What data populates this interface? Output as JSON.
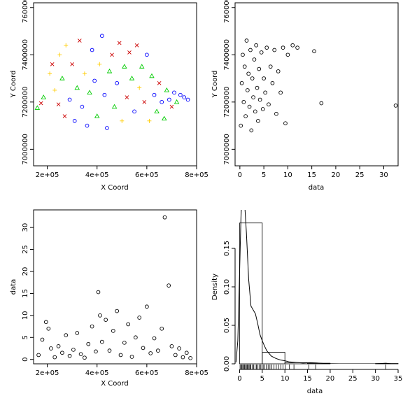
{
  "chart_data": [
    {
      "id": "p1",
      "type": "scatter",
      "xlabel": "X Coord",
      "ylabel": "Y Coord",
      "xlim": [
        145000,
        800000
      ],
      "ylim": [
        6930000,
        7620000
      ],
      "xticks": [
        {
          "v": 200000,
          "label": "2e+05"
        },
        {
          "v": 400000,
          "label": "4e+05"
        },
        {
          "v": 600000,
          "label": "6e+05"
        },
        {
          "v": 800000,
          "label": "8e+05"
        }
      ],
      "yticks": [
        {
          "v": 7000000,
          "label": "7000000"
        },
        {
          "v": 7200000,
          "label": "7200000"
        },
        {
          "v": 7400000,
          "label": "7400000"
        },
        {
          "v": 7600000,
          "label": "7600000"
        }
      ],
      "symbol_colors": {
        "circle": "#0000ff",
        "triangle": "#00cc00",
        "plus": "#ffcc00",
        "cross": "#cc0000"
      },
      "points": [
        [
          160000,
          7175000,
          "triangle"
        ],
        [
          175000,
          7195000,
          "cross"
        ],
        [
          185000,
          7220000,
          "triangle"
        ],
        [
          210000,
          7320000,
          "plus"
        ],
        [
          220000,
          7360000,
          "cross"
        ],
        [
          230000,
          7250000,
          "plus"
        ],
        [
          245000,
          7190000,
          "cross"
        ],
        [
          250000,
          7400000,
          "plus"
        ],
        [
          260000,
          7300000,
          "triangle"
        ],
        [
          270000,
          7140000,
          "cross"
        ],
        [
          275000,
          7440000,
          "plus"
        ],
        [
          290000,
          7210000,
          "circle"
        ],
        [
          300000,
          7360000,
          "cross"
        ],
        [
          310000,
          7120000,
          "circle"
        ],
        [
          320000,
          7260000,
          "triangle"
        ],
        [
          330000,
          7460000,
          "cross"
        ],
        [
          340000,
          7180000,
          "circle"
        ],
        [
          350000,
          7320000,
          "plus"
        ],
        [
          360000,
          7100000,
          "circle"
        ],
        [
          370000,
          7240000,
          "triangle"
        ],
        [
          380000,
          7420000,
          "circle"
        ],
        [
          390000,
          7290000,
          "circle"
        ],
        [
          400000,
          7140000,
          "triangle"
        ],
        [
          410000,
          7360000,
          "plus"
        ],
        [
          420000,
          7480000,
          "circle"
        ],
        [
          430000,
          7230000,
          "circle"
        ],
        [
          440000,
          7090000,
          "circle"
        ],
        [
          450000,
          7330000,
          "triangle"
        ],
        [
          460000,
          7400000,
          "cross"
        ],
        [
          470000,
          7180000,
          "triangle"
        ],
        [
          480000,
          7280000,
          "circle"
        ],
        [
          490000,
          7450000,
          "cross"
        ],
        [
          500000,
          7120000,
          "plus"
        ],
        [
          510000,
          7350000,
          "triangle"
        ],
        [
          520000,
          7220000,
          "cross"
        ],
        [
          530000,
          7410000,
          "cross"
        ],
        [
          540000,
          7300000,
          "triangle"
        ],
        [
          550000,
          7160000,
          "circle"
        ],
        [
          560000,
          7440000,
          "cross"
        ],
        [
          570000,
          7260000,
          "plus"
        ],
        [
          580000,
          7350000,
          "triangle"
        ],
        [
          590000,
          7200000,
          "cross"
        ],
        [
          600000,
          7400000,
          "circle"
        ],
        [
          610000,
          7120000,
          "plus"
        ],
        [
          620000,
          7310000,
          "triangle"
        ],
        [
          630000,
          7230000,
          "circle"
        ],
        [
          640000,
          7160000,
          "triangle"
        ],
        [
          650000,
          7280000,
          "cross"
        ],
        [
          660000,
          7200000,
          "circle"
        ],
        [
          670000,
          7130000,
          "triangle"
        ],
        [
          680000,
          7250000,
          "triangle"
        ],
        [
          690000,
          7210000,
          "circle"
        ],
        [
          700000,
          7180000,
          "cross"
        ],
        [
          710000,
          7240000,
          "circle"
        ],
        [
          720000,
          7200000,
          "triangle"
        ],
        [
          735000,
          7230000,
          "circle"
        ],
        [
          750000,
          7220000,
          "circle"
        ],
        [
          765000,
          7210000,
          "circle"
        ]
      ]
    },
    {
      "id": "p2",
      "type": "scatter",
      "xlabel": "data",
      "ylabel": "Y Coord",
      "xlim": [
        -1,
        33
      ],
      "ylim": [
        6930000,
        7620000
      ],
      "xticks": [
        {
          "v": 0,
          "label": "0"
        },
        {
          "v": 5,
          "label": "5"
        },
        {
          "v": 10,
          "label": "10"
        },
        {
          "v": 15,
          "label": "15"
        },
        {
          "v": 20,
          "label": "20"
        },
        {
          "v": 25,
          "label": "25"
        },
        {
          "v": 30,
          "label": "30"
        }
      ],
      "yticks": [
        {
          "v": 7000000,
          "label": "7000000"
        },
        {
          "v": 7200000,
          "label": "7200000"
        },
        {
          "v": 7400000,
          "label": "7400000"
        },
        {
          "v": 7600000,
          "label": "7600000"
        }
      ],
      "points": [
        [
          0.2,
          7100000
        ],
        [
          0.4,
          7280000
        ],
        [
          0.6,
          7400000
        ],
        [
          0.8,
          7200000
        ],
        [
          1.0,
          7350000
        ],
        [
          1.2,
          7140000
        ],
        [
          1.4,
          7460000
        ],
        [
          1.6,
          7250000
        ],
        [
          1.8,
          7320000
        ],
        [
          2.0,
          7180000
        ],
        [
          2.2,
          7420000
        ],
        [
          2.4,
          7080000
        ],
        [
          2.6,
          7300000
        ],
        [
          2.8,
          7220000
        ],
        [
          3.0,
          7380000
        ],
        [
          3.2,
          7160000
        ],
        [
          3.4,
          7440000
        ],
        [
          3.6,
          7260000
        ],
        [
          3.8,
          7120000
        ],
        [
          4.0,
          7340000
        ],
        [
          4.2,
          7210000
        ],
        [
          4.5,
          7410000
        ],
        [
          4.8,
          7170000
        ],
        [
          5.0,
          7300000
        ],
        [
          5.3,
          7240000
        ],
        [
          5.6,
          7430000
        ],
        [
          6.0,
          7190000
        ],
        [
          6.4,
          7350000
        ],
        [
          6.8,
          7280000
        ],
        [
          7.2,
          7420000
        ],
        [
          7.6,
          7150000
        ],
        [
          8.0,
          7330000
        ],
        [
          8.5,
          7240000
        ],
        [
          9.0,
          7430000
        ],
        [
          9.5,
          7110000
        ],
        [
          10.0,
          7400000
        ],
        [
          11.0,
          7440000
        ],
        [
          12.0,
          7430000
        ],
        [
          15.5,
          7415000
        ],
        [
          17.0,
          7195000
        ],
        [
          32.5,
          7185000
        ]
      ]
    },
    {
      "id": "p3",
      "type": "scatter",
      "xlabel": "X Coord",
      "ylabel": "data",
      "xlim": [
        145000,
        800000
      ],
      "ylim": [
        -1,
        34
      ],
      "xticks": [
        {
          "v": 200000,
          "label": "2e+05"
        },
        {
          "v": 400000,
          "label": "4e+05"
        },
        {
          "v": 600000,
          "label": "6e+05"
        },
        {
          "v": 800000,
          "label": "8e+05"
        }
      ],
      "yticks": [
        {
          "v": 0,
          "label": "0"
        },
        {
          "v": 5,
          "label": "5"
        },
        {
          "v": 10,
          "label": "10"
        },
        {
          "v": 15,
          "label": "15"
        },
        {
          "v": 20,
          "label": "20"
        },
        {
          "v": 25,
          "label": "25"
        },
        {
          "v": 30,
          "label": "30"
        }
      ],
      "points": [
        [
          165000,
          1.0
        ],
        [
          180000,
          4.5
        ],
        [
          195000,
          8.5
        ],
        [
          205000,
          7.0
        ],
        [
          215000,
          2.5
        ],
        [
          230000,
          0.5
        ],
        [
          245000,
          3.0
        ],
        [
          260000,
          1.5
        ],
        [
          275000,
          5.5
        ],
        [
          290000,
          0.8
        ],
        [
          305000,
          2.2
        ],
        [
          320000,
          6.0
        ],
        [
          335000,
          1.2
        ],
        [
          350000,
          0.4
        ],
        [
          365000,
          3.5
        ],
        [
          380000,
          7.5
        ],
        [
          395000,
          1.8
        ],
        [
          405000,
          15.3
        ],
        [
          412000,
          10.0
        ],
        [
          420000,
          4.0
        ],
        [
          435000,
          9.0
        ],
        [
          450000,
          2.0
        ],
        [
          465000,
          6.5
        ],
        [
          480000,
          11.0
        ],
        [
          495000,
          1.0
        ],
        [
          510000,
          3.8
        ],
        [
          525000,
          8.0
        ],
        [
          540000,
          0.6
        ],
        [
          555000,
          5.0
        ],
        [
          570000,
          9.5
        ],
        [
          585000,
          2.6
        ],
        [
          600000,
          12.0
        ],
        [
          615000,
          1.4
        ],
        [
          630000,
          4.8
        ],
        [
          645000,
          2.0
        ],
        [
          660000,
          7.0
        ],
        [
          672000,
          32.3
        ],
        [
          688000,
          16.8
        ],
        [
          700000,
          3.0
        ],
        [
          715000,
          1.0
        ],
        [
          730000,
          2.5
        ],
        [
          745000,
          0.5
        ],
        [
          760000,
          1.5
        ],
        [
          775000,
          0.3
        ]
      ]
    },
    {
      "id": "p4",
      "type": "histogram",
      "xlabel": "data",
      "ylabel": "Density",
      "xlim": [
        -1,
        35
      ],
      "ylim": [
        0,
        0.2
      ],
      "xticks": [
        {
          "v": 0,
          "label": "0"
        },
        {
          "v": 5,
          "label": "5"
        },
        {
          "v": 10,
          "label": "10"
        },
        {
          "v": 15,
          "label": "15"
        },
        {
          "v": 20,
          "label": "20"
        },
        {
          "v": 25,
          "label": "25"
        },
        {
          "v": 30,
          "label": "30"
        },
        {
          "v": 35,
          "label": "35"
        }
      ],
      "yticks": [
        {
          "v": 0,
          "label": "0.00"
        },
        {
          "v": 0.05,
          "label": "0.05"
        },
        {
          "v": 0.1,
          "label": "0.10"
        },
        {
          "v": 0.15,
          "label": "0.15"
        }
      ],
      "bins": [
        {
          "from": 0,
          "to": 5,
          "density": 0.183
        },
        {
          "from": 5,
          "to": 10,
          "density": 0.015
        },
        {
          "from": 10,
          "to": 15,
          "density": 0.0015
        },
        {
          "from": 15,
          "to": 20,
          "density": 0.0008
        },
        {
          "from": 20,
          "to": 25,
          "density": 0.0
        },
        {
          "from": 25,
          "to": 30,
          "density": 0.0
        },
        {
          "from": 30,
          "to": 35,
          "density": 0.0004
        }
      ],
      "density_curve": [
        [
          -0.8,
          0.002
        ],
        [
          -0.4,
          0.03
        ],
        [
          0.0,
          0.12
        ],
        [
          0.3,
          0.19
        ],
        [
          0.7,
          0.24
        ],
        [
          1.0,
          0.22
        ],
        [
          1.5,
          0.17
        ],
        [
          2.0,
          0.11
        ],
        [
          2.5,
          0.075
        ],
        [
          3.0,
          0.07
        ],
        [
          3.5,
          0.065
        ],
        [
          4.0,
          0.052
        ],
        [
          4.5,
          0.038
        ],
        [
          5.0,
          0.03
        ],
        [
          5.5,
          0.023
        ],
        [
          6.0,
          0.017
        ],
        [
          7.0,
          0.01
        ],
        [
          8.0,
          0.007
        ],
        [
          9.0,
          0.005
        ],
        [
          10.0,
          0.004
        ],
        [
          11.0,
          0.0025
        ],
        [
          12.0,
          0.002
        ],
        [
          14.0,
          0.001
        ],
        [
          15.5,
          0.0015
        ],
        [
          17.0,
          0.0012
        ],
        [
          19.0,
          0.0003
        ],
        [
          22.0,
          0.0
        ],
        [
          30.0,
          0.0
        ],
        [
          32.3,
          0.0008
        ],
        [
          33.5,
          0.0
        ]
      ],
      "rug": [
        0.1,
        0.3,
        0.5,
        0.7,
        0.9,
        1.1,
        1.3,
        1.5,
        1.7,
        1.9,
        2.1,
        2.3,
        2.5,
        2.8,
        3.1,
        3.4,
        3.7,
        4.0,
        4.3,
        4.6,
        4.9,
        5.2,
        5.5,
        5.9,
        6.3,
        6.7,
        7.1,
        7.6,
        8.1,
        8.6,
        9.1,
        9.6,
        10.1,
        11.0,
        12.0,
        15.3,
        16.8,
        32.3
      ]
    }
  ]
}
